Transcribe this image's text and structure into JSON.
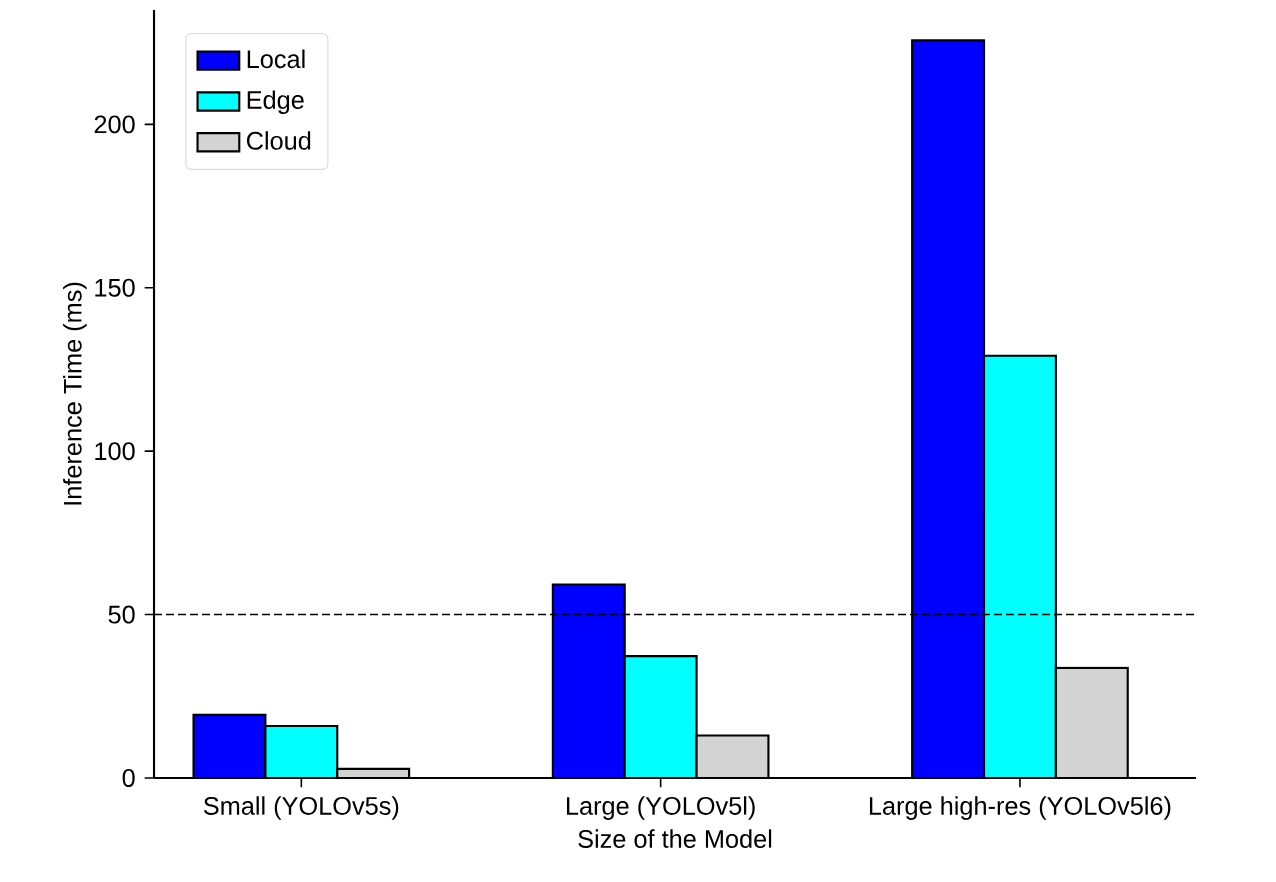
{
  "chart_data": {
    "type": "bar",
    "xlabel": "Size of the Model",
    "ylabel": "Inference Time (ms)",
    "categories": [
      "Small (YOLOv5s)",
      "Large (YOLOv5l)",
      "Large high-res (YOLOv5l6)"
    ],
    "series": [
      {
        "name": "Local",
        "color": "#0000ff",
        "values": [
          19.3,
          59.2,
          225.7
        ]
      },
      {
        "name": "Edge",
        "color": "#00ffff",
        "values": [
          15.9,
          37.3,
          129.2
        ]
      },
      {
        "name": "Cloud",
        "color": "#d3d3d3",
        "values": [
          2.8,
          13.0,
          33.7
        ]
      }
    ],
    "ylim": [
      0,
      235
    ],
    "yticks": [
      0,
      50,
      100,
      150,
      200
    ],
    "ref_lines": [
      {
        "axis": "y",
        "value": 50,
        "color": "#000000",
        "line_style": "dashed"
      }
    ],
    "legend": "top left",
    "grid": false
  }
}
